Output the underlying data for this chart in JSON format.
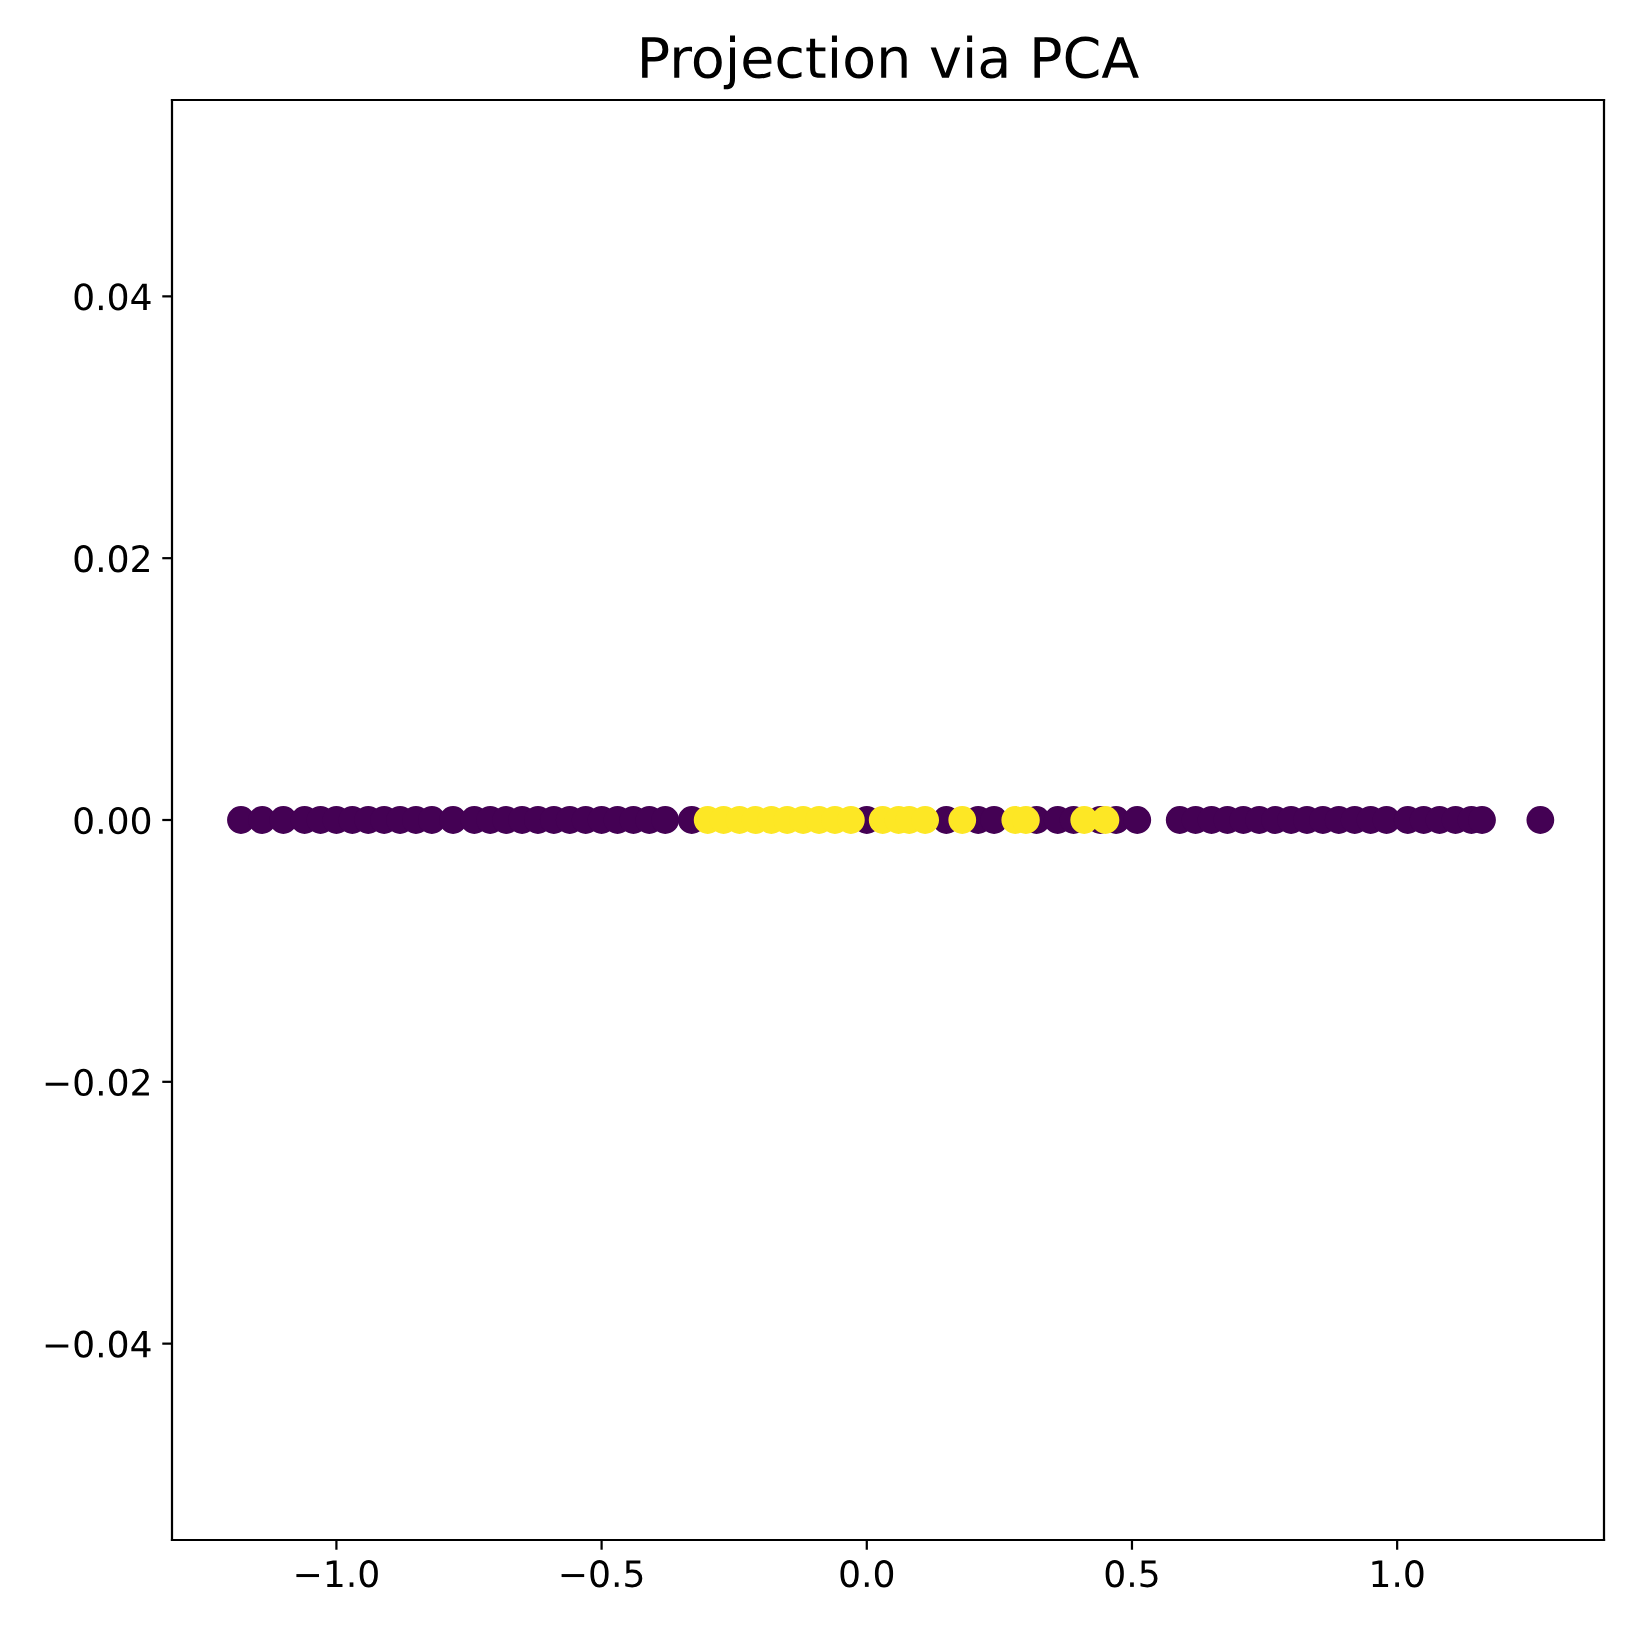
{
  "chart_data": {
    "type": "scatter",
    "title": "Projection via PCA",
    "marker": "circle",
    "grid": false,
    "xlim": [
      -1.31,
      1.39
    ],
    "ylim": [
      -0.055,
      0.055
    ],
    "xticks": [
      {
        "value": -1.0,
        "label": "−1.0"
      },
      {
        "value": -0.5,
        "label": "−0.5"
      },
      {
        "value": 0.0,
        "label": "0.0"
      },
      {
        "value": 0.5,
        "label": "0.5"
      },
      {
        "value": 1.0,
        "label": "1.0"
      }
    ],
    "yticks": [
      {
        "value": -0.04,
        "label": "−0.04"
      },
      {
        "value": -0.02,
        "label": "−0.02"
      },
      {
        "value": 0.0,
        "label": "0.00"
      },
      {
        "value": 0.02,
        "label": "0.02"
      },
      {
        "value": 0.04,
        "label": "0.04"
      }
    ],
    "series": [
      {
        "color": "#440154",
        "x": [
          -1.18,
          -1.14,
          -1.1,
          -1.06,
          -1.03,
          -1.0,
          -0.97,
          -0.94,
          -0.91,
          -0.88,
          -0.85,
          -0.82,
          -0.78,
          -0.74,
          -0.71,
          -0.68,
          -0.65,
          -0.62,
          -0.59,
          -0.56,
          -0.53,
          -0.5,
          -0.47,
          -0.44,
          -0.41,
          -0.38,
          -0.33,
          0.0,
          0.15,
          0.21,
          0.24,
          0.32,
          0.36,
          0.39,
          0.44,
          0.47,
          0.51,
          0.59,
          0.62,
          0.65,
          0.68,
          0.71,
          0.74,
          0.77,
          0.8,
          0.83,
          0.86,
          0.89,
          0.92,
          0.95,
          0.98,
          1.02,
          1.05,
          1.08,
          1.11,
          1.14,
          1.16,
          1.27
        ],
        "values": [
          0,
          0,
          0,
          0,
          0,
          0,
          0,
          0,
          0,
          0,
          0,
          0,
          0,
          0,
          0,
          0,
          0,
          0,
          0,
          0,
          0,
          0,
          0,
          0,
          0,
          0,
          0,
          0,
          0,
          0,
          0,
          0,
          0,
          0,
          0,
          0,
          0,
          0,
          0,
          0,
          0,
          0,
          0,
          0,
          0,
          0,
          0,
          0,
          0,
          0,
          0,
          0,
          0,
          0,
          0,
          0,
          0,
          0
        ]
      },
      {
        "color": "#fde725",
        "x": [
          -0.3,
          -0.27,
          -0.24,
          -0.21,
          -0.18,
          -0.15,
          -0.12,
          -0.09,
          -0.06,
          -0.03,
          0.03,
          0.06,
          0.08,
          0.11,
          0.18,
          0.28,
          0.3,
          0.41,
          0.45
        ],
        "values": [
          0,
          0,
          0,
          0,
          0,
          0,
          0,
          0,
          0,
          0,
          0,
          0,
          0,
          0,
          0,
          0,
          0,
          0,
          0
        ]
      }
    ]
  }
}
